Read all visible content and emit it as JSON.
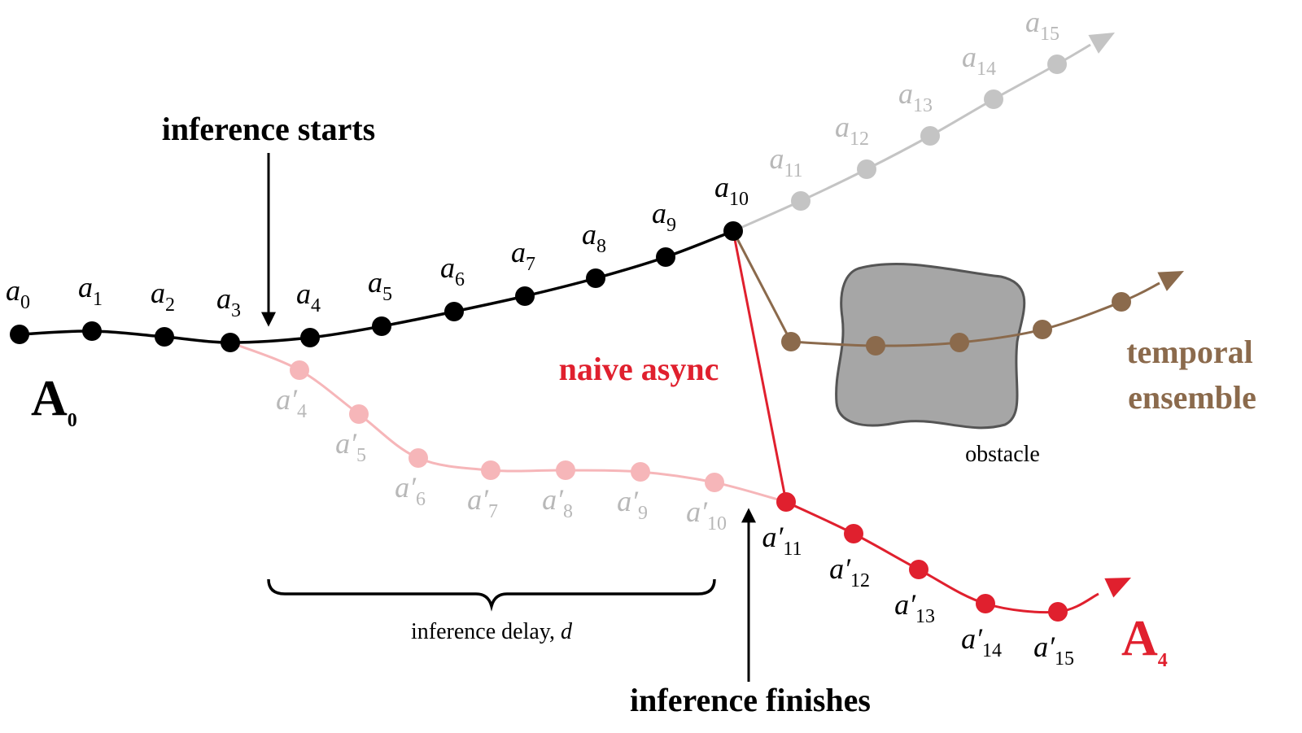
{
  "labels": {
    "inference_starts": "inference starts",
    "inference_finishes": "inference finishes",
    "naive_async": "naive async",
    "temporal": "temporal",
    "ensemble": "ensemble",
    "obstacle": "obstacle",
    "inference_delay": "inference delay, ",
    "delay_symbol": "d"
  },
  "chunks": {
    "first": {
      "letter": "A",
      "sub": "0"
    },
    "second": {
      "letter": "A",
      "sub": "4"
    }
  },
  "actions": [
    {
      "base": "a",
      "sub": "0"
    },
    {
      "base": "a",
      "sub": "1"
    },
    {
      "base": "a",
      "sub": "2"
    },
    {
      "base": "a",
      "sub": "3"
    },
    {
      "base": "a",
      "sub": "4"
    },
    {
      "base": "a",
      "sub": "5"
    },
    {
      "base": "a",
      "sub": "6"
    },
    {
      "base": "a",
      "sub": "7"
    },
    {
      "base": "a",
      "sub": "8"
    },
    {
      "base": "a",
      "sub": "9"
    },
    {
      "base": "a",
      "sub": "10"
    },
    {
      "base": "a",
      "sub": "11"
    },
    {
      "base": "a",
      "sub": "12"
    },
    {
      "base": "a",
      "sub": "13"
    },
    {
      "base": "a",
      "sub": "14"
    },
    {
      "base": "a",
      "sub": "15"
    }
  ],
  "revised_actions": [
    {
      "base": "a′",
      "sub": "4"
    },
    {
      "base": "a′",
      "sub": "5"
    },
    {
      "base": "a′",
      "sub": "6"
    },
    {
      "base": "a′",
      "sub": "7"
    },
    {
      "base": "a′",
      "sub": "8"
    },
    {
      "base": "a′",
      "sub": "9"
    },
    {
      "base": "a′",
      "sub": "10"
    },
    {
      "base": "a′",
      "sub": "11"
    },
    {
      "base": "a′",
      "sub": "12"
    },
    {
      "base": "a′",
      "sub": "13"
    },
    {
      "base": "a′",
      "sub": "14"
    },
    {
      "base": "a′",
      "sub": "15"
    }
  ]
}
